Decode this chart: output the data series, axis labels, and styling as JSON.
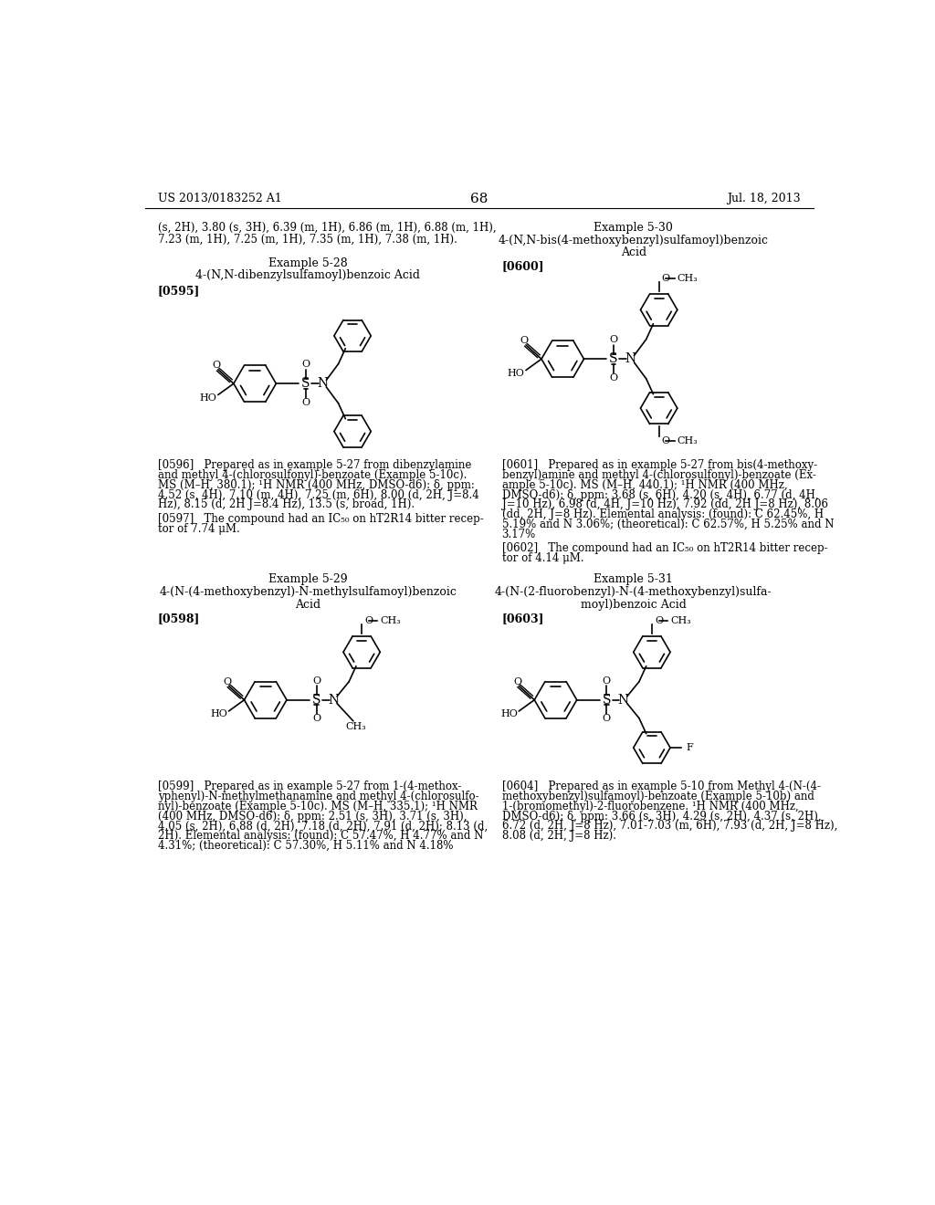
{
  "bg_color": "#ffffff",
  "header_left": "US 2013/0183252 A1",
  "header_right": "Jul. 18, 2013",
  "page_number": "68",
  "top_text_line1": "(s, 2H), 3.80 (s, 3H), 6.39 (m, 1H), 6.86 (m, 1H), 6.88 (m, 1H),",
  "top_text_line2": "7.23 (m, 1H), 7.25 (m, 1H), 7.35 (m, 1H), 7.38 (m, 1H).",
  "example_528_title": "Example 5-28",
  "example_528_name": "4-(N,N-dibenzylsulfamoyl)benzoic Acid",
  "example_528_ref": "[0595]",
  "example_530_title": "Example 5-30",
  "example_530_name_line1": "4-(N,N-bis(4-methoxybenzyl)sulfamoyl)benzoic",
  "example_530_name_line2": "Acid",
  "example_530_ref": "[0600]",
  "example_529_title": "Example 5-29",
  "example_529_name_line1": "4-(N-(4-methoxybenzyl)-N-methylsulfamoyl)benzoic",
  "example_529_name_line2": "Acid",
  "example_529_ref": "[0598]",
  "example_531_title": "Example 5-31",
  "example_531_name_line1": "4-(N-(2-fluorobenzyl)-N-(4-methoxybenzyl)sulfa-",
  "example_531_name_line2": "moyl)benzoic Acid",
  "example_531_ref": "[0603]",
  "para_596_line1": "[0596]   Prepared as in example 5-27 from dibenzylamine",
  "para_596_line2": "and methyl 4-(chlorosulfonyl)-benzoate (Example 5-10c).",
  "para_596_line3": "MS (M–H, 380.1); ¹H NMR (400 MHz, DMSO-d6): δ, ppm:",
  "para_596_line4": "4.52 (s, 4H), 7.10 (m, 4H), 7.25 (m, 6H), 8.00 (d, 2H, J=8.4",
  "para_596_line5": "Hz), 8.15 (d, 2H J=8.4 Hz), 13.5 (s, broad, 1H).",
  "para_597_line1": "[0597]   The compound had an IC₅₀ on hT2R14 bitter recep-",
  "para_597_line2": "tor of 7.74 μM.",
  "para_601_line1": "[0601]   Prepared as in example 5-27 from bis(4-methoxy-",
  "para_601_line2": "benzyl)amine and methyl 4-(chlorosulfonyl)-benzoate (Ex-",
  "para_601_line3": "ample 5-10c). MS (M–H, 440.1); ¹H NMR (400 MHz,",
  "para_601_line4": "DMSO-d6): δ, ppm: 3.68 (s, 6H), 4.20 (s, 4H), 6.77 (d, 4H,",
  "para_601_line5": "J=10 Hz), 6.98 (d, 4H, J=10 Hz), 7.92 (dd, 2H J=8 Hz), 8.06",
  "para_601_line6": "(dd, 2H, J=8 Hz). Elemental analysis: (found): C 62.45%, H",
  "para_601_line7": "5.19% and N 3.06%; (theoretical): C 62.57%, H 5.25% and N",
  "para_601_line8": "3.17%",
  "para_602_line1": "[0602]   The compound had an IC₅₀ on hT2R14 bitter recep-",
  "para_602_line2": "tor of 4.14 μM.",
  "para_599_line1": "[0599]   Prepared as in example 5-27 from 1-(4-methox-",
  "para_599_line2": "yphenyl)-N-methylmethanamine and methyl 4-(chlorosulfo-",
  "para_599_line3": "nyl)-benzoate (Example 5-10c). MS (M–H, 335.1); ¹H NMR",
  "para_599_line4": "(400 MHz, DMSO-d6): δ, ppm: 2.51 (s, 3H), 3.71 (s, 3H),",
  "para_599_line5": "4.05 (s, 2H), 6.88 (d, 2H), 7.18 (d, 2H), 7.91 (d, 2H); 8.13 (d,",
  "para_599_line6": "2H). Elemental analysis: (found): C 57.47%, H 4.77% and N",
  "para_599_line7": "4.31%; (theoretical): C 57.30%, H 5.11% and N 4.18%",
  "para_604_line1": "[0604]   Prepared as in example 5-10 from Methyl 4-(N-(4-",
  "para_604_line2": "methoxybenzyl)sulfamoyl)-benzoate (Example 5-10b) and",
  "para_604_line3": "1-(bromomethyl)-2-fluorobenzene. ¹H NMR (400 MHz,",
  "para_604_line4": "DMSO-d6): δ, ppm: 3.66 (s, 3H), 4.29 (s, 2H), 4.37 (s, 2H),",
  "para_604_line5": "6.72 (d, 2H, J=8 Hz), 7.01-7.03 (m, 6H), 7.93 (d, 2H, J=8 Hz),",
  "para_604_line6": "8.08 (d, 2H, J=8 Hz)."
}
